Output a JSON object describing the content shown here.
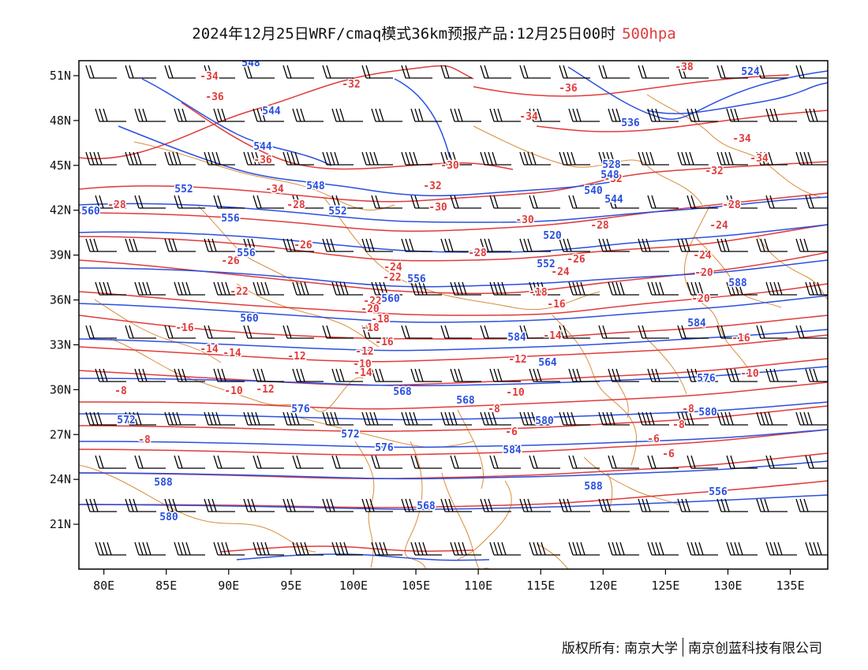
{
  "header": {
    "title": "2024年12月25日WRF/cmaq模式36km预报产品:12月25日00时",
    "level": "500hpa",
    "level_color": "#e03b3b"
  },
  "map": {
    "lon_range": [
      78,
      138
    ],
    "lat_range": [
      18,
      52
    ],
    "lon_ticks": [
      "80E",
      "85E",
      "90E",
      "95E",
      "100E",
      "105E",
      "110E",
      "115E",
      "120E",
      "125E",
      "130E",
      "135E"
    ],
    "lat_ticks": [
      "21N",
      "24N",
      "27N",
      "30N",
      "33N",
      "36N",
      "39N",
      "42N",
      "45N",
      "48N",
      "51N"
    ],
    "temperature_color": "#e03b3b",
    "height_color": "#2a4fe0",
    "border_color": "#d98c3a",
    "wind_color": "#000000",
    "temperature_labels": [
      "-34",
      "-36",
      "-32",
      "-38",
      "-36",
      "-34",
      "-36",
      "-30",
      "-32",
      "-34",
      "-34",
      "-34",
      "-32",
      "-32",
      "-30",
      "-28",
      "-30",
      "-28",
      "-28",
      "-26",
      "-28",
      "-28",
      "-26",
      "-24",
      "-26",
      "-24",
      "-24",
      "-22",
      "-24",
      "-20",
      "-22",
      "-22",
      "-20",
      "-18",
      "-20",
      "-18",
      "-16",
      "-16",
      "-18",
      "-14",
      "-16",
      "-14",
      "-12",
      "-14",
      "-12",
      "-16",
      "-10",
      "-12",
      "-12",
      "-10",
      "-8",
      "-14",
      "-10",
      "-10",
      "-8",
      "-8",
      "-8",
      "-6",
      "-8",
      "-6",
      "-6"
    ],
    "height_labels": [
      "548",
      "544",
      "544",
      "548",
      "552",
      "556",
      "552",
      "556",
      "560",
      "548",
      "544",
      "540",
      "536",
      "528",
      "524",
      "520",
      "552",
      "556",
      "560",
      "560",
      "584",
      "564",
      "568",
      "568",
      "572",
      "576",
      "572",
      "576",
      "580",
      "576",
      "580",
      "584",
      "588",
      "588",
      "568",
      "556",
      "580",
      "584",
      "588"
    ]
  },
  "footer": {
    "copyright": "版权所有: 南京大学",
    "company": "南京创蓝科技有限公司"
  }
}
